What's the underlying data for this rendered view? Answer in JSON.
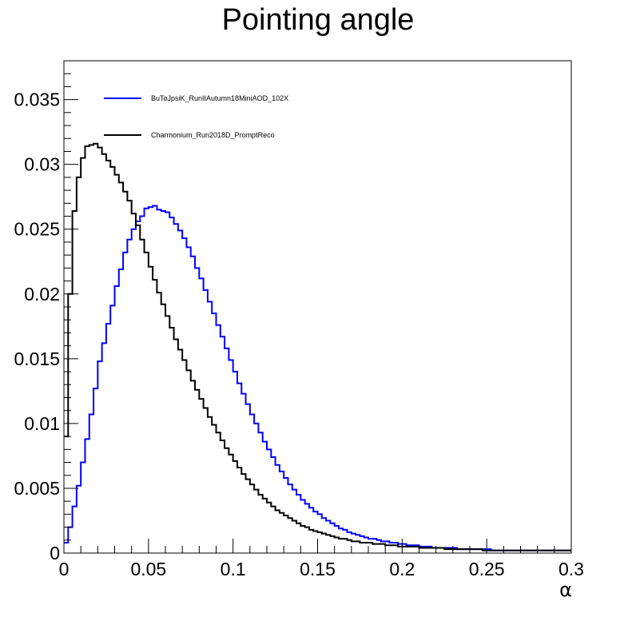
{
  "chart_data": {
    "type": "line",
    "style": "step-histogram",
    "title": "Pointing angle",
    "xlabel": "α",
    "ylabel": "",
    "xlim": [
      0,
      0.3
    ],
    "ylim": [
      0,
      0.038
    ],
    "grid": false,
    "legend_position": "top-left",
    "x_ticks": [
      0,
      0.05,
      0.1,
      0.15,
      0.2,
      0.25,
      0.3
    ],
    "x_tick_labels": [
      "0",
      "0.05",
      "0.1",
      "0.15",
      "0.2",
      "0.25",
      "0.3"
    ],
    "y_ticks": [
      0,
      0.005,
      0.01,
      0.015,
      0.02,
      0.025,
      0.03,
      0.035
    ],
    "y_tick_labels": [
      "0",
      "0.005",
      "0.01",
      "0.015",
      "0.02",
      "0.025",
      "0.03",
      "0.035"
    ],
    "bin_edges_start": 0,
    "bin_width": 0.0025,
    "series": [
      {
        "name": "BuToJpsiK_RunIIAutumn18MiniAOD_102X",
        "color": "#0000ff",
        "values": [
          0.0008,
          0.002,
          0.0036,
          0.0052,
          0.007,
          0.0088,
          0.0107,
          0.0127,
          0.0148,
          0.0162,
          0.0177,
          0.0191,
          0.0206,
          0.0219,
          0.0232,
          0.0242,
          0.025,
          0.0256,
          0.026,
          0.0266,
          0.0267,
          0.0268,
          0.0265,
          0.0264,
          0.0263,
          0.0259,
          0.0254,
          0.0249,
          0.0243,
          0.0236,
          0.0229,
          0.022,
          0.0212,
          0.0203,
          0.0194,
          0.0185,
          0.0176,
          0.0167,
          0.0158,
          0.0149,
          0.014,
          0.0131,
          0.0123,
          0.0115,
          0.0107,
          0.01,
          0.0093,
          0.0086,
          0.008,
          0.0074,
          0.0068,
          0.0063,
          0.0058,
          0.0053,
          0.0049,
          0.0045,
          0.0041,
          0.0038,
          0.0035,
          0.0032,
          0.003,
          0.0027,
          0.0025,
          0.0023,
          0.0021,
          0.0019,
          0.0018,
          0.0016,
          0.0015,
          0.0014,
          0.0013,
          0.0012,
          0.0011,
          0.0011,
          0.001,
          0.0009,
          0.0009,
          0.0008,
          0.0008,
          0.0007,
          0.0007,
          0.0006,
          0.0006,
          0.0006,
          0.0005,
          0.0005,
          0.0005,
          0.0004,
          0.0004,
          0.0004,
          0.0004,
          0.0004,
          0.0004,
          0.0003,
          0.0003,
          0.0003,
          0.0003,
          0.0003,
          0.0003,
          0.0003,
          0.0003,
          0.0002,
          0.0002,
          0.0002,
          0.0002,
          0.0002,
          0.0002,
          0.0002,
          0.0002,
          0.0002,
          0.0002,
          0.0002,
          0.0002,
          0.0002,
          0.0002,
          0.0002,
          0.0002,
          0.0002,
          0.0002,
          0.0002
        ]
      },
      {
        "name": "Charmonium_Run2018D_PromptReco",
        "color": "#000000",
        "values": [
          0.009,
          0.02,
          0.0264,
          0.029,
          0.0305,
          0.0314,
          0.0315,
          0.0316,
          0.0313,
          0.0308,
          0.0303,
          0.0298,
          0.0292,
          0.0286,
          0.0279,
          0.0272,
          0.0262,
          0.0253,
          0.0242,
          0.0232,
          0.0221,
          0.0211,
          0.0201,
          0.0192,
          0.0183,
          0.0174,
          0.0165,
          0.0157,
          0.0149,
          0.0141,
          0.0133,
          0.0126,
          0.0119,
          0.0112,
          0.0105,
          0.0099,
          0.0093,
          0.0087,
          0.0081,
          0.0076,
          0.0071,
          0.0066,
          0.0061,
          0.0057,
          0.0053,
          0.0049,
          0.0045,
          0.0042,
          0.0039,
          0.0036,
          0.0033,
          0.0031,
          0.0029,
          0.0027,
          0.0025,
          0.0023,
          0.0021,
          0.002,
          0.0018,
          0.0017,
          0.0016,
          0.0015,
          0.0014,
          0.0013,
          0.0012,
          0.0011,
          0.0011,
          0.001,
          0.0009,
          0.0009,
          0.0008,
          0.0008,
          0.0008,
          0.0007,
          0.0007,
          0.0007,
          0.0006,
          0.0006,
          0.0006,
          0.0005,
          0.0005,
          0.0005,
          0.0005,
          0.0005,
          0.0004,
          0.0004,
          0.0004,
          0.0004,
          0.0004,
          0.0004,
          0.0003,
          0.0003,
          0.0003,
          0.0003,
          0.0003,
          0.0003,
          0.0003,
          0.0003,
          0.0003,
          0.0002,
          0.0002,
          0.0002,
          0.0002,
          0.0002,
          0.0002,
          0.0002,
          0.0002,
          0.0002,
          0.0002,
          0.0002,
          0.0002,
          0.0002,
          0.0002,
          0.0002,
          0.0002,
          0.0002,
          0.0002,
          0.0002,
          0.0002,
          0.0002
        ]
      }
    ]
  }
}
